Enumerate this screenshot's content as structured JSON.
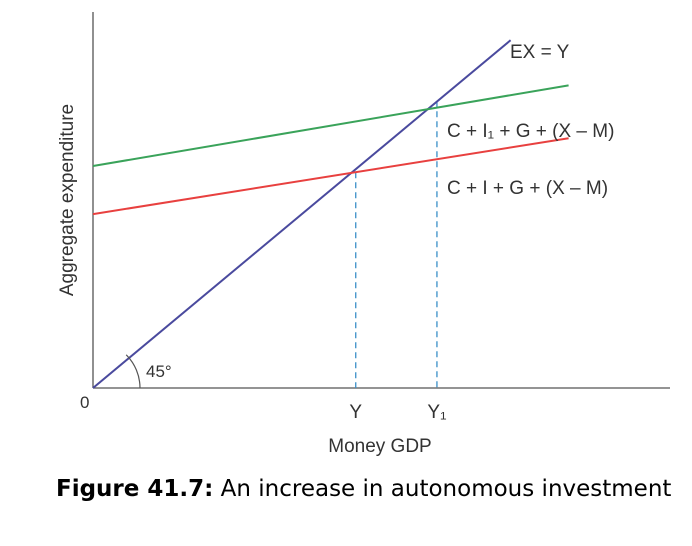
{
  "chart_data": {
    "type": "line",
    "xlabel": "Money GDP",
    "ylabel": "Aggregate expenditure",
    "origin_label": "0",
    "xlim": [
      0,
      100
    ],
    "ylim": [
      0,
      100
    ],
    "series": [
      {
        "name": "EX = Y",
        "color": "#4a4a9e",
        "x": [
          0,
          72
        ],
        "y": [
          0,
          94
        ]
      },
      {
        "name": "C + I₁ + G + (X – M)",
        "color": "#3aa35a",
        "x": [
          0,
          82
        ],
        "y": [
          60,
          81.8
        ]
      },
      {
        "name": "C + I + G + (X – M)",
        "color": "#e8403f",
        "x": [
          0,
          82
        ],
        "y": [
          47,
          67.5
        ]
      }
    ],
    "markers": [
      {
        "label": "Y",
        "x": 45.3,
        "y": 58.3
      },
      {
        "label": "Y₁",
        "x": 59.3,
        "y": 77.5
      }
    ],
    "angle_label": "45°",
    "marker_color": "#3a8fc8"
  },
  "caption": {
    "figure_label": "Figure 41.7:",
    "text": " An increase in autonomous investment"
  }
}
